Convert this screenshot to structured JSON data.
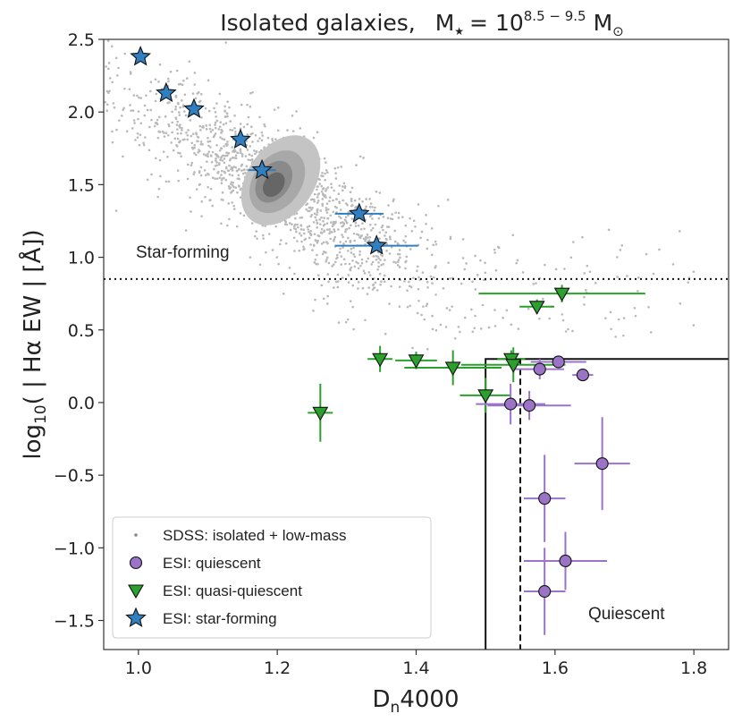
{
  "chart_data": {
    "type": "scatter",
    "title": {
      "main": "Isolated galaxies,",
      "mass_symbol": "M",
      "mass_subscript": "★",
      "equals_base": "= 10",
      "exponent": "8.5 − 9.5",
      "sun_unit": "M",
      "sun_subscript": "⊙"
    },
    "xlabel": {
      "main": "D",
      "sub": "n",
      "rest": "4000"
    },
    "ylabel": {
      "pre": "log",
      "sub": "10",
      "rest": "( | Hα EW |  [Å])"
    },
    "xlim": [
      0.95,
      1.85
    ],
    "ylim": [
      -1.7,
      2.5
    ],
    "xticks": [
      1.0,
      1.2,
      1.4,
      1.6,
      1.8
    ],
    "xtick_labels": [
      "1.0",
      "1.2",
      "1.4",
      "1.6",
      "1.8"
    ],
    "yticks": [
      -1.5,
      -1.0,
      -0.5,
      0.0,
      0.5,
      1.0,
      1.5,
      2.0,
      2.5
    ],
    "ytick_labels": [
      "−1.5",
      "−1.0",
      "−0.5",
      "0.0",
      "0.5",
      "1.0",
      "1.5",
      "2.0",
      "2.5"
    ],
    "colors": {
      "sdss": "#b9b9b9",
      "quiescent": "#9b74c8",
      "quasi_quiescent": "#2ca02c",
      "star_forming": "#2f7fc1",
      "contour_levels": [
        "#c4c4c4",
        "#a8a8a8",
        "#8a8a8a",
        "#666666"
      ]
    },
    "annotations": {
      "star_forming": "Star-forming",
      "quiescent": "Quiescent"
    },
    "divider_y": 0.85,
    "quiescent_box": {
      "x0": 1.5,
      "y_top": 0.3
    },
    "dashed_x": 1.55,
    "legend": {
      "position": "lower-left",
      "entries": [
        {
          "key": "sdss",
          "label": "SDSS: isolated + low-mass"
        },
        {
          "key": "quiescent",
          "label": "ESI: quiescent"
        },
        {
          "key": "quasi_quiescent",
          "label": "ESI: quasi-quiescent"
        },
        {
          "key": "star_forming",
          "label": "ESI: star-forming"
        }
      ]
    },
    "series": [
      {
        "name": "ESI: star-forming",
        "marker": "star",
        "points": [
          {
            "x": 1.003,
            "y": 2.38,
            "xerr": 0.0
          },
          {
            "x": 1.04,
            "y": 2.13,
            "xerr": 0.0
          },
          {
            "x": 1.08,
            "y": 2.02,
            "xerr": 0.0
          },
          {
            "x": 1.147,
            "y": 1.81,
            "xerr": 0.0
          },
          {
            "x": 1.178,
            "y": 1.6,
            "xerr": 0.02
          },
          {
            "x": 1.318,
            "y": 1.3,
            "xerr": 0.035
          },
          {
            "x": 1.343,
            "y": 1.08,
            "xerr": 0.06
          }
        ]
      },
      {
        "name": "ESI: quasi-quiescent",
        "marker": "triangle-down",
        "points": [
          {
            "x": 1.262,
            "y": -0.07,
            "xerr": 0.018,
            "yerr": 0.2
          },
          {
            "x": 1.348,
            "y": 0.3,
            "xerr": 0.018,
            "yerr": 0.09
          },
          {
            "x": 1.4,
            "y": 0.29,
            "xerr": 0.03,
            "yerr": 0.06
          },
          {
            "x": 1.453,
            "y": 0.24,
            "xerr": 0.07,
            "yerr": 0.12
          },
          {
            "x": 1.5,
            "y": 0.05,
            "xerr": 0.037,
            "yerr": 0.12
          },
          {
            "x": 1.537,
            "y": 0.3,
            "xerr": 0.02,
            "yerr": 0.06
          },
          {
            "x": 1.54,
            "y": 0.26,
            "xerr": 0.075,
            "yerr": 0.12
          },
          {
            "x": 1.574,
            "y": 0.66,
            "xerr": 0.025,
            "yerr": 0.05
          },
          {
            "x": 1.61,
            "y": 0.75,
            "xerr": 0.12,
            "yerr": 0.06
          }
        ]
      },
      {
        "name": "ESI: quiescent",
        "marker": "circle",
        "points": [
          {
            "x": 1.578,
            "y": 0.23,
            "xerr": 0.035,
            "yerr": 0.07
          },
          {
            "x": 1.605,
            "y": 0.28,
            "xerr": 0.04,
            "yerr": 0.04
          },
          {
            "x": 1.64,
            "y": 0.19,
            "xerr": 0.015,
            "yerr": 0.03
          },
          {
            "x": 1.536,
            "y": -0.01,
            "xerr": 0.05,
            "yerr": 0.14
          },
          {
            "x": 1.563,
            "y": -0.02,
            "xerr": 0.06,
            "yerr": 0.1
          },
          {
            "x": 1.668,
            "y": -0.42,
            "xerr": 0.04,
            "yerr": 0.32
          },
          {
            "x": 1.585,
            "y": -0.66,
            "xerr": 0.03,
            "yerr": 0.3
          },
          {
            "x": 1.615,
            "y": -1.09,
            "xerr": 0.06,
            "yerr": 0.2
          },
          {
            "x": 1.585,
            "y": -1.3,
            "xerr": 0.03,
            "yerr": 0.3
          }
        ]
      }
    ],
    "sdss_cloud": {
      "description_key": "sdss",
      "core_center": [
        1.2,
        1.5
      ],
      "contour_ellipses": [
        {
          "cx": 1.205,
          "cy": 1.53,
          "rx": 0.13,
          "ry": 0.42,
          "angle": -55
        },
        {
          "cx": 1.2,
          "cy": 1.52,
          "rx": 0.09,
          "ry": 0.3,
          "angle": -55
        },
        {
          "cx": 1.195,
          "cy": 1.52,
          "rx": 0.06,
          "ry": 0.2,
          "angle": -55
        },
        {
          "cx": 1.195,
          "cy": 1.5,
          "rx": 0.035,
          "ry": 0.12,
          "angle": -55
        }
      ]
    }
  }
}
